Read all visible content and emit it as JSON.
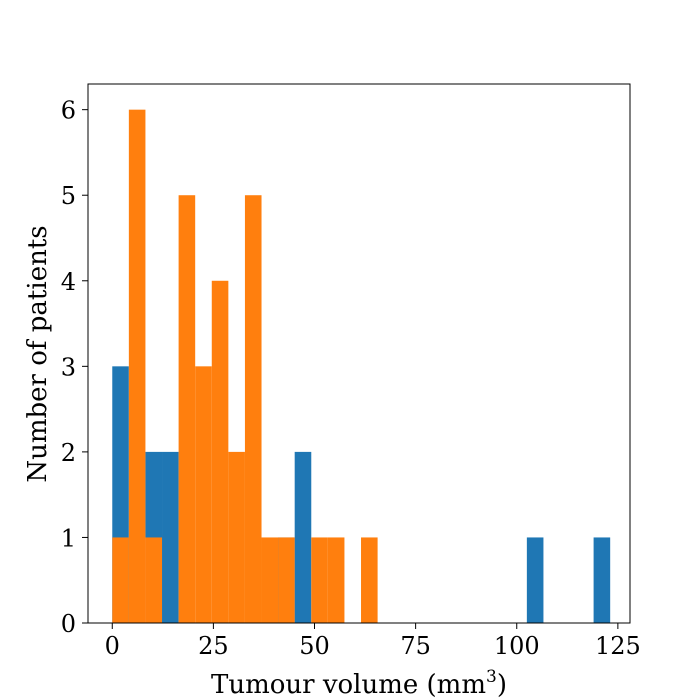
{
  "chart_data": {
    "type": "bar",
    "subtype": "histogram-overlay",
    "xlabel": "Tumour volume (mm",
    "xlabel_superscript": "3",
    "xlabel_suffix": ")",
    "ylabel": "Number of patients",
    "xlim": [
      -6,
      128
    ],
    "ylim": [
      0,
      6.3
    ],
    "xticks": [
      0,
      25,
      50,
      75,
      100,
      125
    ],
    "yticks": [
      0,
      1,
      2,
      3,
      4,
      5,
      6
    ],
    "grid": false,
    "series": [
      {
        "color": "#1f77b4",
        "bins": [
          [
            0,
            4.1,
            3
          ],
          [
            4.1,
            8.2,
            0
          ],
          [
            8.2,
            12.3,
            2
          ],
          [
            12.3,
            16.4,
            2
          ],
          [
            16.4,
            20.5,
            0
          ],
          [
            20.5,
            24.6,
            0
          ],
          [
            24.6,
            28.7,
            0
          ],
          [
            28.7,
            32.8,
            0
          ],
          [
            32.8,
            36.9,
            0
          ],
          [
            36.9,
            41,
            0
          ],
          [
            41,
            45.1,
            1
          ],
          [
            45.1,
            49.2,
            2
          ],
          [
            102.5,
            106.6,
            1
          ],
          [
            119,
            123.1,
            1
          ]
        ]
      },
      {
        "color": "#ff7f0e",
        "bins": [
          [
            0,
            4.1,
            1
          ],
          [
            4.1,
            8.2,
            6
          ],
          [
            8.2,
            12.3,
            1
          ],
          [
            16.4,
            20.5,
            5
          ],
          [
            20.5,
            24.6,
            3
          ],
          [
            24.6,
            28.7,
            4
          ],
          [
            28.7,
            32.8,
            2
          ],
          [
            32.8,
            36.9,
            5
          ],
          [
            36.9,
            41,
            1
          ],
          [
            41,
            45.1,
            1
          ],
          [
            49.2,
            53.3,
            1
          ],
          [
            53.3,
            57.4,
            1
          ],
          [
            61.5,
            65.6,
            1
          ]
        ]
      }
    ]
  }
}
